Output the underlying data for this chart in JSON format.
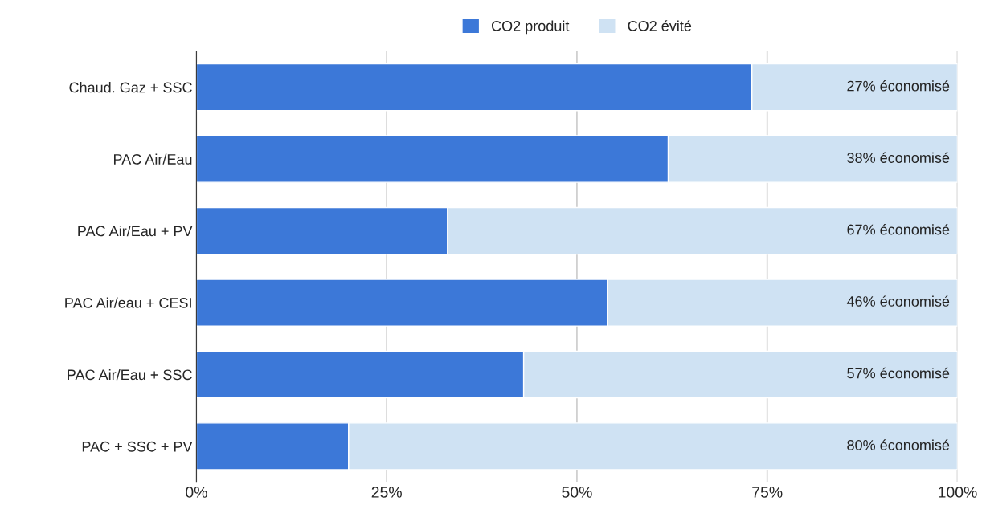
{
  "chart_data": {
    "type": "bar",
    "orientation": "horizontal",
    "stacked": true,
    "categories": [
      "Chaud. Gaz + SSC",
      "PAC Air/Eau",
      "PAC Air/Eau + PV",
      "PAC Air/eau + CESI",
      "PAC Air/Eau + SSC",
      "PAC + SSC + PV"
    ],
    "series": [
      {
        "name": "CO2 produit",
        "color": "#3c78d8",
        "values": [
          73,
          62,
          33,
          54,
          43,
          20
        ]
      },
      {
        "name": "CO2 évité",
        "color": "#cfe2f3",
        "values": [
          27,
          38,
          67,
          46,
          57,
          80
        ],
        "value_labels": [
          "27% économisé",
          "38% économisé",
          "67% économisé",
          "46% économisé",
          "57% économisé",
          "80% économisé"
        ]
      }
    ],
    "xlim": [
      0,
      100
    ],
    "xticks": [
      {
        "value": 0,
        "label": "0%"
      },
      {
        "value": 25,
        "label": "25%"
      },
      {
        "value": 50,
        "label": "50%"
      },
      {
        "value": 75,
        "label": "75%"
      },
      {
        "value": 100,
        "label": "100%"
      }
    ],
    "grid": "x",
    "legend": "top"
  }
}
